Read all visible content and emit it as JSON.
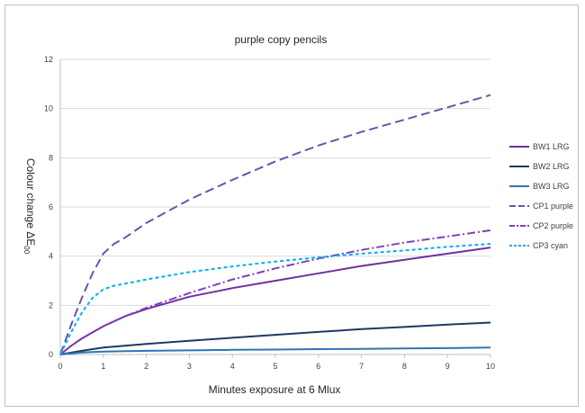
{
  "chart_data": {
    "type": "line",
    "title": "purple copy pencils",
    "xlabel": "Minutes exposure at 6 Mlux",
    "ylabel": "Colour change ΔE",
    "ylabel_sub": "00",
    "xlim": [
      0,
      10
    ],
    "ylim": [
      0,
      12
    ],
    "xticks": [
      0,
      1,
      2,
      3,
      4,
      5,
      6,
      7,
      8,
      9,
      10
    ],
    "yticks": [
      0,
      2,
      4,
      6,
      8,
      10,
      12
    ],
    "grid": "horizontal",
    "legend_position": "right",
    "series": [
      {
        "name": "BW1 LRG",
        "color": "#7030a0",
        "dash": "solid",
        "x": [
          0,
          0.25,
          0.5,
          0.75,
          1,
          1.5,
          2,
          3,
          4,
          5,
          6,
          7,
          8,
          9,
          10
        ],
        "y": [
          0,
          0.35,
          0.65,
          0.9,
          1.15,
          1.55,
          1.85,
          2.35,
          2.7,
          3.0,
          3.3,
          3.6,
          3.85,
          4.1,
          4.35
        ]
      },
      {
        "name": "BW2 LRG",
        "color": "#203864",
        "dash": "solid",
        "x": [
          0,
          0.5,
          1,
          1.5,
          2,
          3,
          4,
          5,
          6,
          7,
          8,
          9,
          10
        ],
        "y": [
          0,
          0.15,
          0.28,
          0.36,
          0.43,
          0.56,
          0.68,
          0.8,
          0.92,
          1.03,
          1.12,
          1.22,
          1.3
        ]
      },
      {
        "name": "BW3 LRG",
        "color": "#2e75b6",
        "dash": "solid",
        "x": [
          0,
          0.5,
          1,
          2,
          3,
          4,
          5,
          6,
          7,
          8,
          9,
          10
        ],
        "y": [
          0,
          0.08,
          0.12,
          0.15,
          0.17,
          0.19,
          0.2,
          0.22,
          0.23,
          0.25,
          0.26,
          0.28
        ]
      },
      {
        "name": "CP1 purple",
        "color": "#6f4fb0",
        "dash": "longdash",
        "x": [
          0,
          0.25,
          0.5,
          0.75,
          1,
          1.25,
          1.5,
          2,
          3,
          4,
          5,
          6,
          7,
          8,
          9,
          10
        ],
        "y": [
          0,
          1.2,
          2.3,
          3.3,
          4.1,
          4.5,
          4.75,
          5.35,
          6.3,
          7.1,
          7.85,
          8.5,
          9.05,
          9.55,
          10.05,
          10.55
        ]
      },
      {
        "name": "CP2 purple",
        "color": "#7f3fbf",
        "dash": "dashdot",
        "x": [
          0,
          0.25,
          0.5,
          0.75,
          1,
          1.5,
          2,
          3,
          4,
          5,
          6,
          7,
          8,
          9,
          10
        ],
        "y": [
          0,
          0.35,
          0.65,
          0.9,
          1.15,
          1.55,
          1.9,
          2.5,
          3.05,
          3.5,
          3.9,
          4.25,
          4.55,
          4.8,
          5.05
        ]
      },
      {
        "name": "CP3 cyan",
        "color": "#00b0f0",
        "dash": "shortdash",
        "x": [
          0,
          0.25,
          0.5,
          0.75,
          1,
          1.25,
          1.5,
          2,
          3,
          4,
          5,
          6,
          7,
          8,
          9,
          10
        ],
        "y": [
          0,
          0.9,
          1.7,
          2.3,
          2.65,
          2.8,
          2.88,
          3.05,
          3.35,
          3.58,
          3.78,
          3.95,
          4.1,
          4.23,
          4.38,
          4.5
        ]
      }
    ]
  }
}
